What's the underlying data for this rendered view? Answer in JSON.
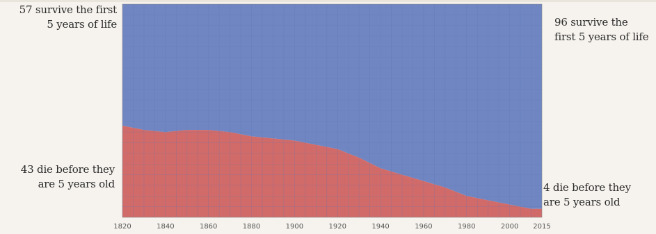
{
  "chart_data": {
    "type": "area",
    "stacked": true,
    "x": [
      1820,
      1830,
      1840,
      1850,
      1860,
      1870,
      1880,
      1890,
      1900,
      1910,
      1920,
      1930,
      1940,
      1950,
      1960,
      1970,
      1980,
      1990,
      2000,
      2010,
      2015
    ],
    "series": [
      {
        "values": [
          43,
          41,
          40,
          41,
          41,
          40,
          38,
          37,
          36,
          34,
          32,
          28,
          23,
          20,
          17,
          14,
          10,
          8,
          6,
          4,
          4
        ]
      },
      {
        "values": [
          57,
          59,
          60,
          59,
          59,
          60,
          62,
          63,
          64,
          66,
          68,
          72,
          77,
          80,
          83,
          86,
          90,
          92,
          94,
          96,
          96
        ]
      }
    ],
    "xlim": [
      1820,
      2015
    ],
    "ylim": [
      0,
      100
    ],
    "xticks": [
      "1820",
      "1840",
      "1860",
      "1880",
      "1900",
      "1920",
      "1940",
      "1960",
      "1980",
      "2000",
      "2015"
    ],
    "xtick_values": [
      1820,
      1840,
      1860,
      1880,
      1900,
      1920,
      1940,
      1960,
      1980,
      2000,
      2015
    ],
    "grid": true,
    "colors": {
      "die": "#d06b6a",
      "survive": "#6f86c2",
      "grid": "#5e74b3",
      "background": "#f6f3ee"
    }
  },
  "annotations": {
    "top_left_line1": "57 survive the first",
    "top_left_line2": "5 years of life",
    "top_right_line1": "96 survive the",
    "top_right_line2": "first 5 years of life",
    "bottom_left_line1": "43 die before they",
    "bottom_left_line2": "are 5 years old",
    "bottom_right_line1": "4 die before they",
    "bottom_right_line2": "are 5 years old"
  }
}
